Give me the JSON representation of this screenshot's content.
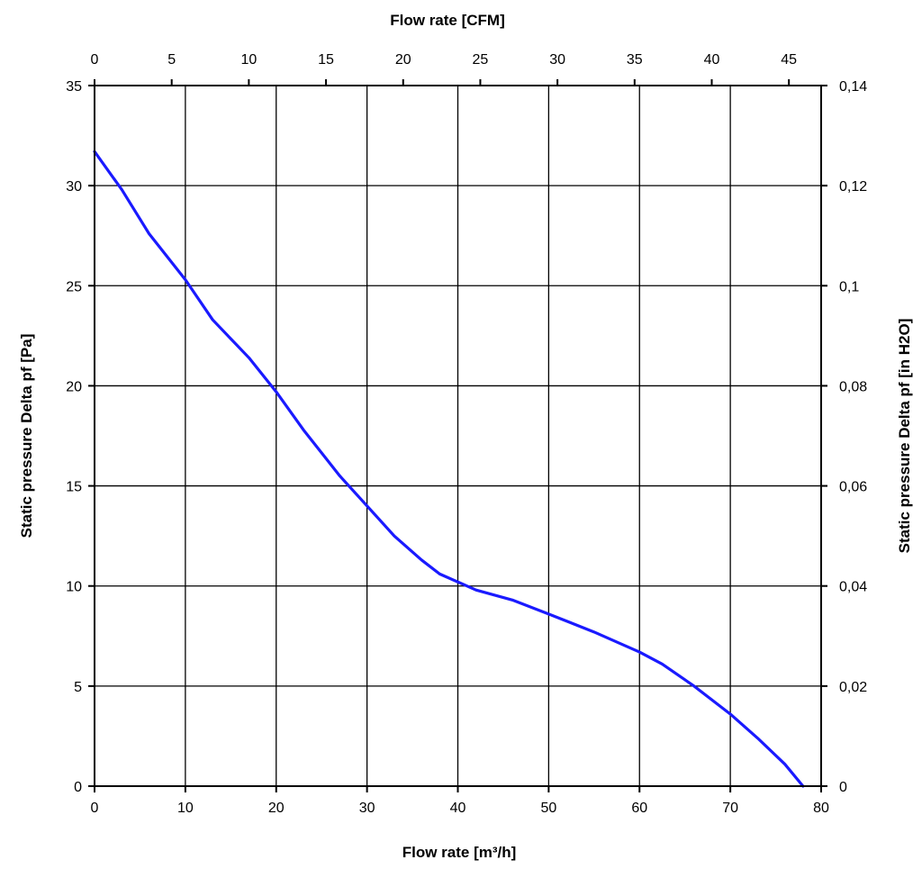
{
  "chart_data": {
    "type": "line",
    "title": "",
    "xlabel": "Flow rate [m³/h]",
    "ylabel": "Static pressure Delta pf [Pa]",
    "x2label": "Flow rate [CFM]",
    "y2label": "Static pressure Delta pf [in H2O]",
    "xlim": [
      0,
      80
    ],
    "ylim": [
      0,
      35
    ],
    "x2lim": [
      0,
      47.09
    ],
    "y2lim": [
      0,
      0.14
    ],
    "grid": true,
    "x_ticks": [
      "0",
      "10",
      "20",
      "30",
      "40",
      "50",
      "60",
      "70",
      "80"
    ],
    "y_ticks": [
      "0",
      "5",
      "10",
      "15",
      "20",
      "25",
      "30",
      "35"
    ],
    "x2_ticks": [
      "0",
      "5",
      "10",
      "15",
      "20",
      "25",
      "30",
      "35",
      "40",
      "45"
    ],
    "y2_ticks": [
      "0",
      "0,02",
      "0,04",
      "0,06",
      "0,08",
      "0,1",
      "0,12",
      "0,14"
    ],
    "series": [
      {
        "name": "Static pressure",
        "color": "#1a1aff",
        "x": [
          0,
          3,
          6,
          10,
          13,
          17,
          20,
          23,
          27,
          30,
          33,
          36,
          38,
          40,
          42,
          46,
          50,
          55,
          58,
          60,
          62.5,
          66,
          70,
          73,
          76,
          78
        ],
        "y": [
          31.7,
          29.8,
          27.6,
          25.3,
          23.3,
          21.4,
          19.7,
          17.8,
          15.5,
          14.0,
          12.5,
          11.3,
          10.6,
          10.2,
          9.8,
          9.3,
          8.6,
          7.7,
          7.1,
          6.7,
          6.1,
          5.0,
          3.6,
          2.4,
          1.1,
          0.0
        ]
      }
    ]
  }
}
